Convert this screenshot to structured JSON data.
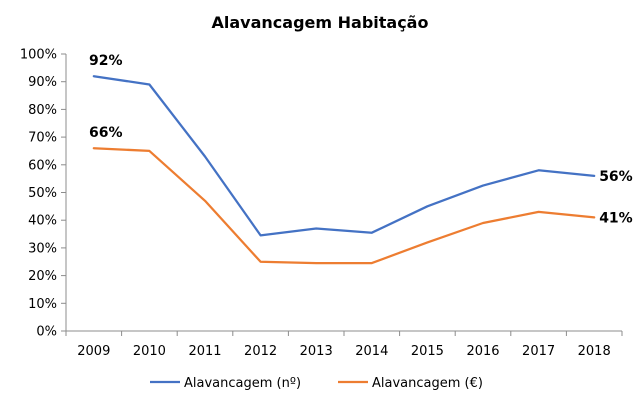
{
  "chart_data": {
    "type": "line",
    "title": "Alavancagem Habitação",
    "xlabel": "",
    "ylabel": "",
    "categories": [
      "2009",
      "2010",
      "2011",
      "2012",
      "2013",
      "2014",
      "2015",
      "2016",
      "2017",
      "2018"
    ],
    "ylim": [
      0,
      100
    ],
    "y_ticks": [
      "0%",
      "10%",
      "20%",
      "30%",
      "40%",
      "50%",
      "60%",
      "70%",
      "80%",
      "90%",
      "100%"
    ],
    "grid": false,
    "legend_position": "bottom",
    "series": [
      {
        "name": "Alavancagem (nº)",
        "color": "#4472C4",
        "values": [
          92,
          89,
          63,
          34.5,
          37,
          35.5,
          45,
          52.5,
          58,
          56
        ],
        "point_labels": [
          {
            "index": 0,
            "text": "92%"
          },
          {
            "index": 9,
            "text": "56%"
          }
        ]
      },
      {
        "name": "Alavancagem (€)",
        "color": "#ED7D31",
        "values": [
          66,
          65,
          47,
          25,
          24.5,
          24.5,
          32,
          39,
          43,
          41
        ],
        "point_labels": [
          {
            "index": 0,
            "text": "66%"
          },
          {
            "index": 9,
            "text": "41%"
          }
        ]
      }
    ]
  }
}
